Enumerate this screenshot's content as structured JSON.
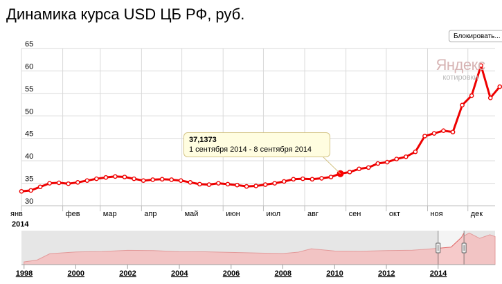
{
  "title": "Динамика курса USD ЦБ РФ, руб.",
  "lock_button": "Блокировать...",
  "watermark": {
    "brand": "Яндекс",
    "sub": "котировки"
  },
  "tooltip": {
    "value": "37,1373",
    "range": "1 сентября 2014 - 8 сентября 2014"
  },
  "colors": {
    "series": "#ee0000",
    "grid": "#d9d9d9",
    "navigator_bg": "#e6e6e6",
    "navigator_fill": "#f2c4c4",
    "highlight": "#ff0000"
  },
  "chart_data": [
    {
      "type": "line",
      "ylim": [
        30,
        65
      ],
      "yticks": [
        30,
        35,
        40,
        45,
        50,
        55,
        60,
        65
      ],
      "xlim": [
        0,
        50.5
      ],
      "year_label": "2014",
      "month_labels": [
        {
          "label": "янв",
          "week": 0
        },
        {
          "label": "фев",
          "week": 4.4
        },
        {
          "label": "мар",
          "week": 8.4
        },
        {
          "label": "апр",
          "week": 12.8
        },
        {
          "label": "май",
          "week": 17.1
        },
        {
          "label": "июн",
          "week": 21.5
        },
        {
          "label": "июл",
          "week": 25.8
        },
        {
          "label": "авг",
          "week": 30.2
        },
        {
          "label": "сен",
          "week": 34.6
        },
        {
          "label": "окт",
          "week": 38.9
        },
        {
          "label": "ноя",
          "week": 43.3
        },
        {
          "label": "дек",
          "week": 47.6
        }
      ],
      "values": [
        33.2,
        33.4,
        34.2,
        35.0,
        35.1,
        34.9,
        35.2,
        35.6,
        36.0,
        36.3,
        36.5,
        36.4,
        36.0,
        35.6,
        35.8,
        35.9,
        35.8,
        35.6,
        35.2,
        34.8,
        34.7,
        35.0,
        34.8,
        34.6,
        34.3,
        34.4,
        34.7,
        35.0,
        35.4,
        35.9,
        36.0,
        35.9,
        36.1,
        36.4,
        37.1373,
        37.5,
        38.2,
        38.5,
        39.4,
        39.7,
        40.4,
        40.9,
        42.0,
        45.5,
        46.1,
        46.7,
        46.4,
        52.4,
        54.5,
        61.2,
        54.0,
        56.5
      ],
      "highlight_index": 34,
      "series": [
        {
          "name": "",
          "values": []
        }
      ]
    },
    {
      "type": "area",
      "x": [
        1998,
        1998.5,
        1999,
        2000,
        2001,
        2002,
        2003,
        2004,
        2005,
        2006,
        2007,
        2008,
        2008.6,
        2009.1,
        2010,
        2011,
        2012,
        2013,
        2014,
        2014.5,
        2014.9,
        2015.2,
        2015.6,
        2016.0,
        2016.2
      ],
      "values": [
        6.0,
        10.0,
        24.0,
        28.0,
        29.0,
        31.5,
        31.0,
        28.5,
        28.3,
        27.0,
        25.5,
        24.5,
        27.5,
        35.0,
        30.0,
        29.5,
        31.0,
        31.8,
        36.0,
        38.5,
        60.0,
        70.0,
        58.0,
        66.0,
        62.0
      ],
      "ylim": [
        0,
        75
      ],
      "xlim": [
        1997.9,
        2016.2
      ],
      "xticks": [
        1998,
        2000,
        2002,
        2004,
        2006,
        2008,
        2010,
        2012,
        2014
      ],
      "selection": [
        2014.0,
        2015.0
      ]
    }
  ]
}
